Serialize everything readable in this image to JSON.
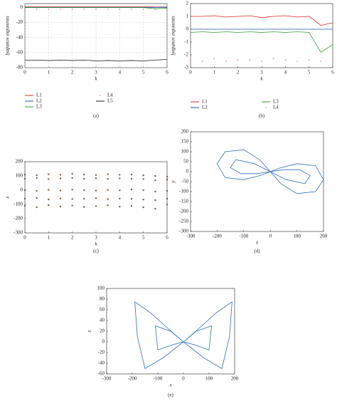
{
  "chart_data": [
    {
      "type": "line",
      "caption": "(a)",
      "xlabel": "k",
      "ylabel": "lyapunov exponents",
      "xlim": [
        0,
        6
      ],
      "xticks": [
        0,
        1,
        2,
        3,
        4,
        5,
        6
      ],
      "ylim": [
        -80,
        5
      ],
      "yticks": [
        0,
        -20,
        -40,
        -60,
        -80
      ],
      "grid": true,
      "x": [
        0,
        0.5,
        1,
        1.5,
        2,
        2.5,
        3,
        3.5,
        4,
        4.5,
        5,
        5.5,
        6
      ],
      "series": [
        {
          "name": "L1",
          "color": "#d62728",
          "values": [
            1,
            1,
            1,
            1,
            1,
            1,
            1,
            1,
            1,
            1,
            1,
            0.5,
            0.5
          ]
        },
        {
          "name": "L2",
          "color": "#1f4fbf",
          "values": [
            0,
            0,
            0,
            0,
            0,
            0,
            0,
            0,
            0,
            0,
            0,
            0,
            0
          ]
        },
        {
          "name": "L3",
          "color": "#2ca02c",
          "values": [
            -0.3,
            -0.3,
            -0.3,
            -0.3,
            -0.3,
            -0.3,
            -0.3,
            -0.3,
            -0.3,
            -0.3,
            -0.3,
            -1.8,
            -1.2
          ]
        },
        {
          "name": "L4",
          "color": "#d6709a",
          "marker": "dot",
          "values": [
            -2.4,
            -2.5,
            -2.4,
            -2.5,
            -2.4,
            -2.5,
            -2.4,
            -2.5,
            -2.4,
            -2.5,
            -2.4,
            -2.5,
            -2.4
          ]
        },
        {
          "name": "L5",
          "color": "#222222",
          "values": [
            -70,
            -70,
            -70.5,
            -70,
            -70.5,
            -70,
            -71,
            -70.5,
            -71,
            -70.5,
            -71,
            -70,
            -69
          ]
        }
      ]
    },
    {
      "type": "line",
      "caption": "(b)",
      "xlabel": "k",
      "ylabel": "lyapunov exponents",
      "xlim": [
        0,
        6
      ],
      "xticks": [
        0,
        1,
        2,
        3,
        4,
        5,
        6
      ],
      "ylim": [
        -3,
        2
      ],
      "yticks": [
        2,
        1,
        0,
        -1,
        -2,
        -3
      ],
      "grid": false,
      "x": [
        0,
        0.5,
        1,
        1.5,
        2,
        2.5,
        3,
        3.5,
        4,
        4.5,
        5,
        5.5,
        6
      ],
      "series": [
        {
          "name": "L1",
          "color": "#d62728",
          "values": [
            1.0,
            1.0,
            1.05,
            0.95,
            1.0,
            1.05,
            0.9,
            1.0,
            1.05,
            0.95,
            1.0,
            0.3,
            0.5
          ]
        },
        {
          "name": "L2",
          "color": "#1f4fbf",
          "values": [
            0,
            0,
            0,
            0,
            0,
            0,
            0,
            0,
            0,
            0,
            0,
            0,
            0
          ]
        },
        {
          "name": "L3",
          "color": "#2ca02c",
          "values": [
            -0.25,
            -0.2,
            -0.25,
            -0.2,
            -0.25,
            -0.2,
            -0.25,
            -0.2,
            -0.25,
            -0.2,
            -0.25,
            -1.8,
            -1.2
          ]
        },
        {
          "name": "L4",
          "color": "#d6709a",
          "marker": "dot",
          "values": [
            -2.4,
            -2.5,
            -2.3,
            -2.5,
            -2.4,
            -2.4,
            -2.5,
            -2.3,
            -2.4,
            -2.5,
            -2.4,
            -2.5,
            -2.4
          ]
        }
      ]
    },
    {
      "type": "scatter",
      "caption": "(c)",
      "xlabel": "k",
      "ylabel": "x",
      "xlim": [
        0,
        6
      ],
      "xticks": [
        0,
        1,
        2,
        3,
        4,
        5,
        6
      ],
      "ylim": [
        -300,
        200
      ],
      "yticks": [
        200,
        100,
        0,
        -100,
        -200,
        -300
      ],
      "grid": false,
      "x": [
        0,
        0.5,
        1,
        1.5,
        2,
        2.5,
        3,
        3.5,
        4,
        4.5,
        5,
        5.5,
        6
      ],
      "series": [
        {
          "color": "#7a5c3e",
          "values": [
            110,
            105,
            112,
            108,
            115,
            110,
            106,
            112,
            108,
            110,
            104,
            100,
            95
          ]
        },
        {
          "color": "#7a5c3e",
          "values": [
            80,
            85,
            78,
            82,
            86,
            80,
            84,
            79,
            83,
            81,
            78,
            70,
            75
          ]
        },
        {
          "color": "#7a5c3e",
          "values": [
            0,
            -5,
            3,
            -2,
            4,
            0,
            -3,
            2,
            -1,
            5,
            0,
            -10,
            -5
          ]
        },
        {
          "color": "#7a5c3e",
          "values": [
            -60,
            -55,
            -65,
            -58,
            -62,
            -60,
            -57,
            -63,
            -59,
            -61,
            -66,
            -70,
            -60
          ]
        },
        {
          "color": "#7a5c3e",
          "values": [
            -110,
            -120,
            -105,
            -115,
            -108,
            -118,
            -112,
            -106,
            -116,
            -110,
            -120,
            -130,
            -100
          ]
        }
      ]
    },
    {
      "type": "line",
      "caption": "(d)",
      "xlabel": "x",
      "ylabel": "y",
      "xlim": [
        -300,
        200
      ],
      "xticks": [
        -300,
        -200,
        -100,
        0,
        100,
        200
      ],
      "ylim": [
        -300,
        200
      ],
      "yticks": [
        200,
        150,
        100,
        50,
        0,
        -50,
        -100,
        -150,
        -200,
        -250,
        -300
      ],
      "grid": false,
      "x": [
        0,
        -40,
        -100,
        -170,
        -200,
        -170,
        -100,
        -40,
        0,
        40,
        100,
        170,
        200,
        170,
        100,
        40,
        0,
        -60,
        -130,
        -150,
        -110,
        -50,
        0,
        50,
        110,
        150,
        130,
        60,
        0
      ],
      "series": [
        {
          "color": "#2a6fbf",
          "values": [
            0,
            60,
            110,
            100,
            40,
            -30,
            -40,
            -20,
            0,
            20,
            40,
            30,
            -40,
            -100,
            -110,
            -60,
            0,
            40,
            60,
            20,
            -10,
            -10,
            0,
            10,
            10,
            -20,
            -60,
            -40,
            0
          ]
        }
      ]
    },
    {
      "type": "line",
      "caption": "(e)",
      "xlabel": "x",
      "ylabel": "z",
      "xlim": [
        -300,
        200
      ],
      "xticks": [
        -300,
        -200,
        -100,
        0,
        100,
        200
      ],
      "ylim": [
        -60,
        100
      ],
      "yticks": [
        100,
        80,
        60,
        40,
        20,
        0,
        -20,
        -40,
        -60
      ],
      "grid": false,
      "x": [
        0,
        -60,
        -130,
        -190,
        -180,
        -150,
        -80,
        0,
        80,
        150,
        180,
        190,
        130,
        60,
        0,
        -50,
        -110,
        -100,
        -40,
        0,
        40,
        100,
        110,
        50,
        0
      ],
      "series": [
        {
          "color": "#2a6fbf",
          "values": [
            0,
            25,
            55,
            75,
            10,
            -50,
            -30,
            0,
            -30,
            -50,
            10,
            75,
            55,
            25,
            0,
            20,
            30,
            -15,
            -5,
            0,
            -5,
            -15,
            30,
            20,
            0
          ]
        }
      ]
    }
  ]
}
